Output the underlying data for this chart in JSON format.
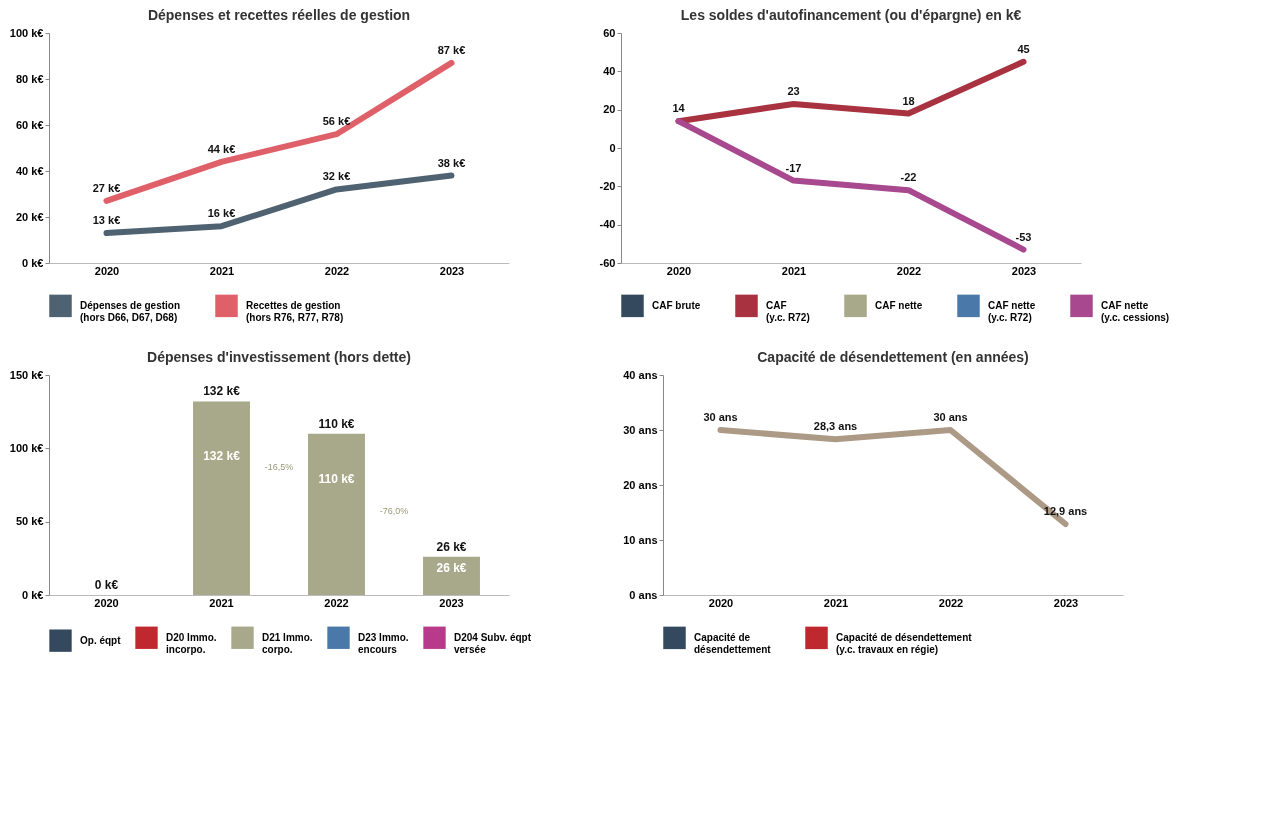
{
  "chart_data": [
    {
      "type": "line",
      "title": "Dépenses et recettes réelles de gestion",
      "categories": [
        "2020",
        "2021",
        "2022",
        "2023"
      ],
      "series": [
        {
          "name": "Dépenses de gestion (hors D66, D67, D68)",
          "color": "#4f6272",
          "values": [
            13,
            16,
            32,
            38
          ],
          "value_labels": [
            "13 k€",
            "16 k€",
            "32 k€",
            "38 k€"
          ]
        },
        {
          "name": "Recettes de gestion (hors R76, R77, R78)",
          "color": "#e0606a",
          "values": [
            27,
            44,
            56,
            87
          ],
          "value_labels": [
            "27 k€",
            "44 k€",
            "56 k€",
            "87 k€"
          ]
        }
      ],
      "ylim": [
        0,
        100
      ],
      "yticks": [
        {
          "value": 0,
          "label": "0 k€"
        },
        {
          "value": 20,
          "label": "20 k€"
        },
        {
          "value": 40,
          "label": "40 k€"
        },
        {
          "value": 60,
          "label": "60 k€"
        },
        {
          "value": 80,
          "label": "80 k€"
        },
        {
          "value": 100,
          "label": "100 k€"
        }
      ],
      "legend": "bottom"
    },
    {
      "type": "line",
      "title": "Les soldes d'autofinancement (ou d'épargne) en k€",
      "categories": [
        "2020",
        "2021",
        "2022",
        "2023"
      ],
      "series": [
        {
          "name": "CAF brute",
          "color": "#34495e",
          "values": [
            null,
            null,
            null,
            null
          ]
        },
        {
          "name": "CAF (y.c. R72)",
          "color": "#a83240",
          "values": [
            14,
            23,
            18,
            45
          ]
        },
        {
          "name": "CAF nette",
          "color": "#a8a88a",
          "values": [
            null,
            null,
            null,
            null
          ]
        },
        {
          "name": "CAF nette (y.c. R72)",
          "color": "#4a78a8",
          "values": [
            null,
            null,
            null,
            null
          ]
        },
        {
          "name": "CAF nette (y.c. cessions)",
          "color": "#a8488e",
          "values": [
            14,
            -17,
            -22,
            -53
          ],
          "value_labels": [
            null,
            "-17",
            "-22",
            "-53"
          ]
        }
      ],
      "ylim": [
        -60,
        60
      ],
      "yticks": [
        -60,
        -40,
        -20,
        0,
        20,
        40,
        60
      ],
      "data_labels": true,
      "legend": "bottom"
    },
    {
      "type": "bar",
      "stacked": true,
      "title": "Dépenses d'investissement (hors dette)",
      "categories": [
        "2020",
        "2021",
        "2022",
        "2023"
      ],
      "series": [
        {
          "name": "Op. éqpt",
          "color": "#34495e",
          "values": [
            null,
            null,
            null,
            null
          ]
        },
        {
          "name": "D20 Immo. incorpo.",
          "color": "#c0282f",
          "values": [
            null,
            null,
            null,
            null
          ]
        },
        {
          "name": "D21 Immo. corpo.",
          "color": "#a8a88a",
          "values": [
            0,
            132,
            110,
            26
          ],
          "value_labels": [
            null,
            "132 k€",
            "110 k€",
            "26 k€"
          ]
        },
        {
          "name": "D23 Immo. encours",
          "color": "#4a78a8",
          "values": [
            null,
            null,
            null,
            null
          ]
        },
        {
          "name": "D204 Subv. éqpt versée",
          "color": "#b83a8a",
          "values": [
            null,
            null,
            null,
            null
          ]
        }
      ],
      "totals": [
        "0 k€",
        "132 k€",
        "110 k€",
        "26 k€"
      ],
      "annotations": [
        "-16,5%",
        "-76,0%"
      ],
      "ylim": [
        0,
        150
      ],
      "yticks": [
        {
          "value": 0,
          "label": "0 k€"
        },
        {
          "value": 50,
          "label": "50 k€"
        },
        {
          "value": 100,
          "label": "100 k€"
        },
        {
          "value": 150,
          "label": "150 k€"
        }
      ],
      "legend": "bottom"
    },
    {
      "type": "line",
      "title": "Capacité de désendettement (en années)",
      "categories": [
        "2020",
        "2021",
        "2022",
        "2023"
      ],
      "series": [
        {
          "name": "Capacité de désendettement",
          "color": "#34495e",
          "values": [
            null,
            null,
            null,
            null
          ]
        },
        {
          "name": "Capacité de désendettement (y.c. travaux en régie)",
          "color": "#c0282f",
          "values": [
            null,
            null,
            null,
            null
          ]
        },
        {
          "color": "#ad9a86",
          "values": [
            30,
            28.3,
            30,
            12.9
          ],
          "value_labels": [
            "30 ans",
            "28,3 ans",
            "30 ans",
            "12,9 ans"
          ]
        }
      ],
      "ylim": [
        0,
        40
      ],
      "yticks": [
        {
          "value": 0,
          "label": "0 ans"
        },
        {
          "value": 10,
          "label": "10 ans"
        },
        {
          "value": 20,
          "label": "20 ans"
        },
        {
          "value": 30,
          "label": "30 ans"
        },
        {
          "value": 40,
          "label": "40 ans"
        }
      ],
      "legend": "bottom"
    }
  ]
}
